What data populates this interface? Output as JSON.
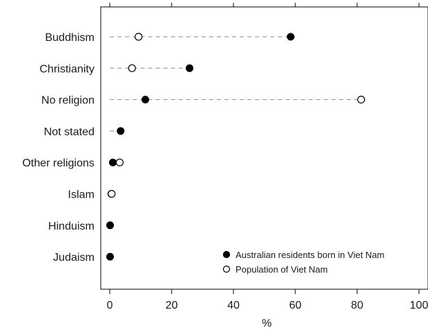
{
  "chart_data": {
    "type": "dot",
    "xlabel": "%",
    "xlim": [
      0,
      100
    ],
    "xticks": [
      0,
      20,
      40,
      60,
      80,
      100
    ],
    "categories": [
      "Buddhism",
      "Christianity",
      "No religion",
      "Not stated",
      "Other religions",
      "Islam",
      "Hinduism",
      "Judaism"
    ],
    "series": [
      {
        "name": "Australian residents born in Viet Nam",
        "marker": "filled-circle",
        "values": [
          58.5,
          25.8,
          11.5,
          3.5,
          1.0,
          0.5,
          0.1,
          0.1
        ]
      },
      {
        "name": "Population of Viet Nam",
        "marker": "open-circle",
        "values": [
          9.3,
          7.2,
          81.3,
          null,
          3.2,
          0.6,
          null,
          null
        ]
      }
    ],
    "legend_position": "bottom-right",
    "grid": false,
    "connector": "dashed"
  }
}
